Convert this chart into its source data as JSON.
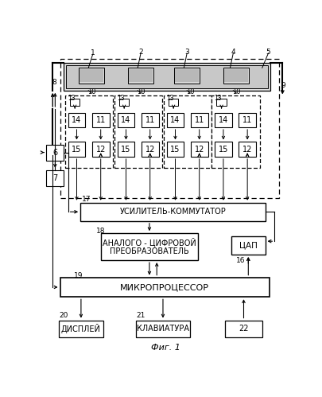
{
  "title": "Фиг. 1",
  "bg_color": "#ffffff",
  "fig_width": 4.06,
  "fig_height": 4.99,
  "dpi": 100,
  "labels": {
    "усилитель": "УСИЛИТЕЛЬ-КОММУТАТОР",
    "ацп_line1": "АНАЛОГО - ЦИФРОВОЙ",
    "ацп_line2": "ПРЕОБРАЗОВАТЕЛЬ",
    "цап": "ЦАП",
    "микропроцессор": "МИКРОПРОЦЕССОР",
    "дисплей": "ДИСПЛЕЙ",
    "клавиатура": "КЛАВИАТУРА"
  }
}
